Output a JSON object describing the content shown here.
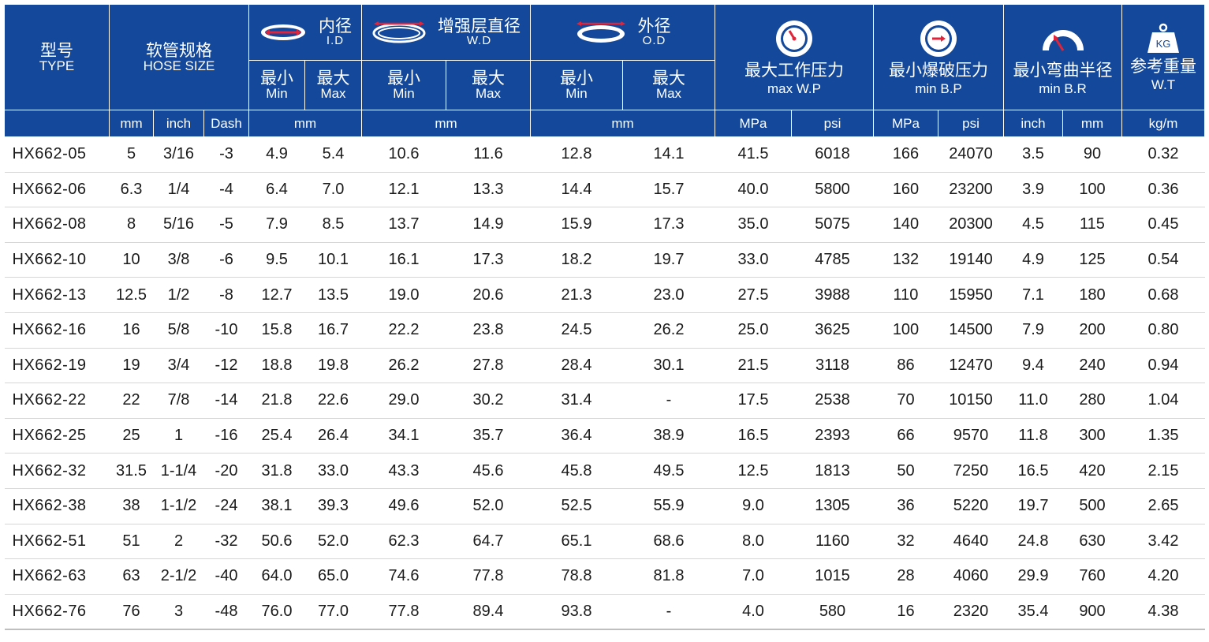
{
  "headers": {
    "type": {
      "zh": "型号",
      "en": "TYPE"
    },
    "hose_size": {
      "zh": "软管规格",
      "en": "HOSE SIZE"
    },
    "id": {
      "zh": "内径",
      "en": "I.D"
    },
    "wd": {
      "zh": "增强层直径",
      "en": "W.D"
    },
    "od": {
      "zh": "外径",
      "en": "O.D"
    },
    "wp": {
      "zh": "最大工作压力",
      "en": "max W.P"
    },
    "bp": {
      "zh": "最小爆破压力",
      "en": "min B.P"
    },
    "br": {
      "zh": "最小弯曲半径",
      "en": "min B.R"
    },
    "wt": {
      "zh": "参考重量",
      "en": "W.T",
      "icon_text": "KG"
    },
    "min": {
      "zh": "最小",
      "en": "Min"
    },
    "max": {
      "zh": "最大",
      "en": "Max"
    }
  },
  "units": {
    "mm": "mm",
    "inch": "inch",
    "dash": "Dash",
    "mpa": "MPa",
    "psi": "psi",
    "kgm": "kg/m"
  },
  "colors": {
    "header_bg": "#13489a",
    "icon_accent": "#e0243a",
    "row_divider": "#d6d6d6"
  },
  "icons": {
    "id": "inner-diameter-ring-icon",
    "wd": "reinforcement-diameter-ring-icon",
    "od": "outer-diameter-ring-icon",
    "wp": "pressure-gauge-icon",
    "bp": "burst-gauge-icon",
    "br": "bend-radius-arc-icon",
    "wt": "weight-kg-icon"
  },
  "rows": [
    [
      "HX662-05",
      "5",
      "3/16",
      "-3",
      "4.9",
      "5.4",
      "10.6",
      "11.6",
      "12.8",
      "14.1",
      "41.5",
      "6018",
      "166",
      "24070",
      "3.5",
      "90",
      "0.32"
    ],
    [
      "HX662-06",
      "6.3",
      "1/4",
      "-4",
      "6.4",
      "7.0",
      "12.1",
      "13.3",
      "14.4",
      "15.7",
      "40.0",
      "5800",
      "160",
      "23200",
      "3.9",
      "100",
      "0.36"
    ],
    [
      "HX662-08",
      "8",
      "5/16",
      "-5",
      "7.9",
      "8.5",
      "13.7",
      "14.9",
      "15.9",
      "17.3",
      "35.0",
      "5075",
      "140",
      "20300",
      "4.5",
      "115",
      "0.45"
    ],
    [
      "HX662-10",
      "10",
      "3/8",
      "-6",
      "9.5",
      "10.1",
      "16.1",
      "17.3",
      "18.2",
      "19.7",
      "33.0",
      "4785",
      "132",
      "19140",
      "4.9",
      "125",
      "0.54"
    ],
    [
      "HX662-13",
      "12.5",
      "1/2",
      "-8",
      "12.7",
      "13.5",
      "19.0",
      "20.6",
      "21.3",
      "23.0",
      "27.5",
      "3988",
      "110",
      "15950",
      "7.1",
      "180",
      "0.68"
    ],
    [
      "HX662-16",
      "16",
      "5/8",
      "-10",
      "15.8",
      "16.7",
      "22.2",
      "23.8",
      "24.5",
      "26.2",
      "25.0",
      "3625",
      "100",
      "14500",
      "7.9",
      "200",
      "0.80"
    ],
    [
      "HX662-19",
      "19",
      "3/4",
      "-12",
      "18.8",
      "19.8",
      "26.2",
      "27.8",
      "28.4",
      "30.1",
      "21.5",
      "3118",
      "86",
      "12470",
      "9.4",
      "240",
      "0.94"
    ],
    [
      "HX662-22",
      "22",
      "7/8",
      "-14",
      "21.8",
      "22.6",
      "29.0",
      "30.2",
      "31.4",
      "-",
      "17.5",
      "2538",
      "70",
      "10150",
      "11.0",
      "280",
      "1.04"
    ],
    [
      "HX662-25",
      "25",
      "1",
      "-16",
      "25.4",
      "26.4",
      "34.1",
      "35.7",
      "36.4",
      "38.9",
      "16.5",
      "2393",
      "66",
      "9570",
      "11.8",
      "300",
      "1.35"
    ],
    [
      "HX662-32",
      "31.5",
      "1-1/4",
      "-20",
      "31.8",
      "33.0",
      "43.3",
      "45.6",
      "45.8",
      "49.5",
      "12.5",
      "1813",
      "50",
      "7250",
      "16.5",
      "420",
      "2.15"
    ],
    [
      "HX662-38",
      "38",
      "1-1/2",
      "-24",
      "38.1",
      "39.3",
      "49.6",
      "52.0",
      "52.5",
      "55.9",
      "9.0",
      "1305",
      "36",
      "5220",
      "19.7",
      "500",
      "2.65"
    ],
    [
      "HX662-51",
      "51",
      "2",
      "-32",
      "50.6",
      "52.0",
      "62.3",
      "64.7",
      "65.1",
      "68.6",
      "8.0",
      "1160",
      "32",
      "4640",
      "24.8",
      "630",
      "3.42"
    ],
    [
      "HX662-63",
      "63",
      "2-1/2",
      "-40",
      "64.0",
      "65.0",
      "74.6",
      "77.8",
      "78.8",
      "81.8",
      "7.0",
      "1015",
      "28",
      "4060",
      "29.9",
      "760",
      "4.20"
    ],
    [
      "HX662-76",
      "76",
      "3",
      "-48",
      "76.0",
      "77.0",
      "77.8",
      "89.4",
      "93.8",
      "-",
      "4.0",
      "580",
      "16",
      "2320",
      "35.4",
      "900",
      "4.38"
    ]
  ]
}
